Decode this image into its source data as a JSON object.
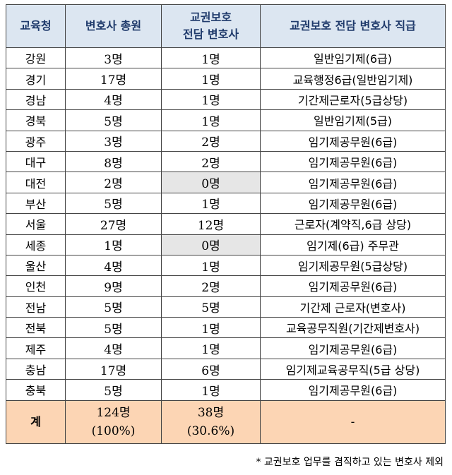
{
  "table": {
    "headers": {
      "region": "교육청",
      "total_lawyers": "변호사 총원",
      "dedicated_line1": "교권보호",
      "dedicated_line2": "전담 변호사",
      "position": "교권보호 전담 변호사 직급"
    },
    "rows": [
      {
        "region": "강원",
        "total": "3명",
        "dedicated": "1명",
        "position": "일반임기제(6급)"
      },
      {
        "region": "경기",
        "total": "17명",
        "dedicated": "1명",
        "position": "교육행정6급(일반임기제)"
      },
      {
        "region": "경남",
        "total": "4명",
        "dedicated": "1명",
        "position": "기간제근로자(5급상당)"
      },
      {
        "region": "경북",
        "total": "5명",
        "dedicated": "1명",
        "position": "일반임기제(5급)"
      },
      {
        "region": "광주",
        "total": "3명",
        "dedicated": "2명",
        "position": "임기제공무원(6급)"
      },
      {
        "region": "대구",
        "total": "8명",
        "dedicated": "2명",
        "position": "임기제공무원(6급)"
      },
      {
        "region": "대전",
        "total": "2명",
        "dedicated": "0명",
        "position": "임기제공무원(6급)"
      },
      {
        "region": "부산",
        "total": "5명",
        "dedicated": "1명",
        "position": "임기제공무원(6급)"
      },
      {
        "region": "서울",
        "total": "27명",
        "dedicated": "12명",
        "position": "근로자(계약직,6급 상당)"
      },
      {
        "region": "세종",
        "total": "1명",
        "dedicated": "0명",
        "position": "임기제(6급) 주무관"
      },
      {
        "region": "울산",
        "total": "4명",
        "dedicated": "1명",
        "position": "임기제공무원(5급상당)"
      },
      {
        "region": "인천",
        "total": "9명",
        "dedicated": "2명",
        "position": "임기제공무원(6급)"
      },
      {
        "region": "전남",
        "total": "5명",
        "dedicated": "5명",
        "position": "기간제 근로자(변호사)"
      },
      {
        "region": "전북",
        "total": "5명",
        "dedicated": "1명",
        "position": "교육공무직원(기간제변호사)"
      },
      {
        "region": "제주",
        "total": "4명",
        "dedicated": "1명",
        "position": "임기제공무원(6급)"
      },
      {
        "region": "충남",
        "total": "17명",
        "dedicated": "6명",
        "position": "임기제교육공무직(5급 상당)"
      },
      {
        "region": "충북",
        "total": "5명",
        "dedicated": "1명",
        "position": "임기제공무원(6급)"
      }
    ],
    "total_row": {
      "label": "계",
      "total_line1": "124명",
      "total_line2": "(100%)",
      "dedicated_line1": "38명",
      "dedicated_line2": "(30.6%)",
      "position": "-"
    },
    "colors": {
      "header_bg": "#dce6f1",
      "total_bg": "#fcd5b4",
      "zero_bg": "#e6e6e6"
    }
  },
  "footnote": "* 교권보호 업무를 겸직하고 있는 변호사 제외"
}
